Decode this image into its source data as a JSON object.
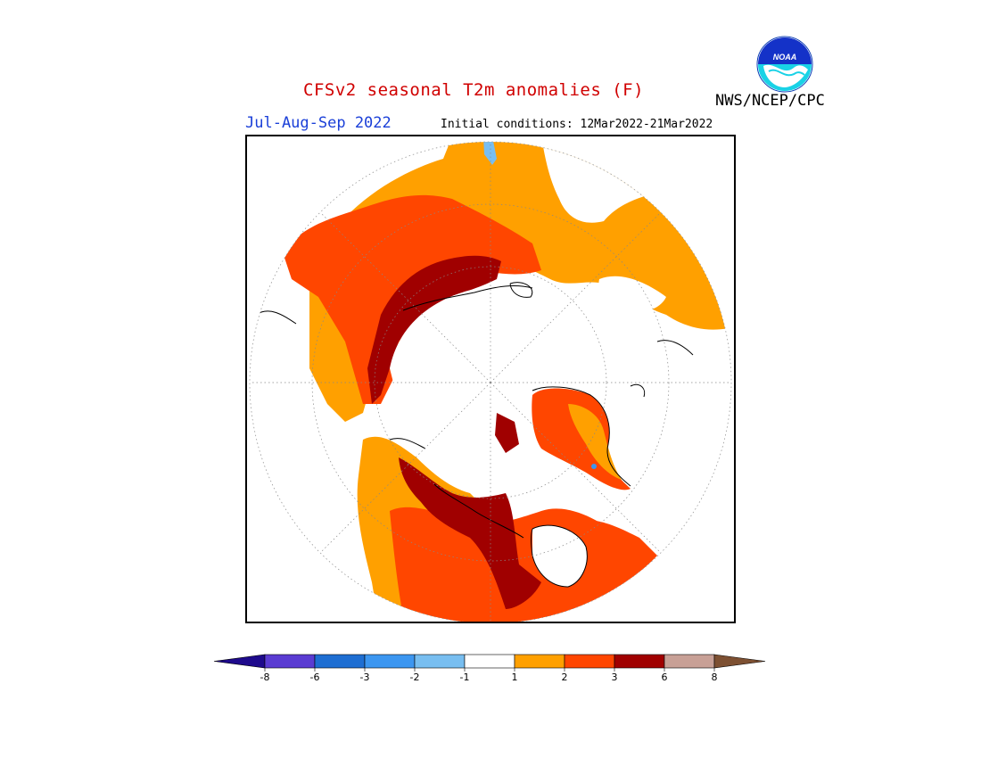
{
  "header": {
    "title": "CFSv2 seasonal T2m anomalies (F)",
    "agency": "NWS/NCEP/CPC",
    "season": "Jul-Aug-Sep 2022",
    "initial_conditions": "Initial conditions: 12Mar2022-21Mar2022",
    "logo_text": "NOAA"
  },
  "colorbar": {
    "ticks": [
      "-8",
      "-6",
      "-3",
      "-2",
      "-1",
      "1",
      "2",
      "3",
      "6",
      "8"
    ],
    "colors": [
      "#1e0a8c",
      "#5a3cd2",
      "#1e6ed2",
      "#3c96f0",
      "#78bef0",
      "#ffffff",
      "#ffa000",
      "#ff4600",
      "#a00000",
      "#c8a096",
      "#7d5032"
    ]
  },
  "map": {
    "projection": "north polar stereographic",
    "colors": {
      "light_orange": "#ffa000",
      "orange_red": "#ff4600",
      "dark_red": "#a00000",
      "light_blue": "#78bef0",
      "blue": "#3c96f0"
    }
  }
}
